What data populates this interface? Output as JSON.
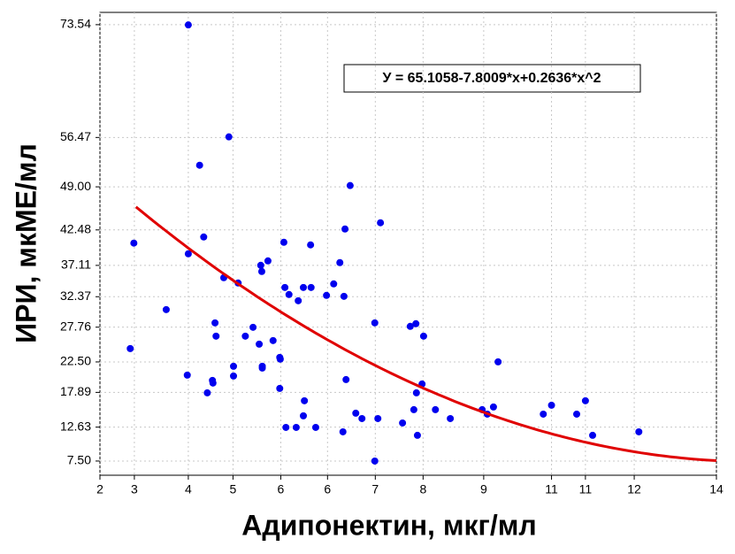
{
  "chart_data": {
    "type": "scatter",
    "xlabel": "Адипонектин, мкг/мл",
    "ylabel": "ИРИ, мкМЕ/мл",
    "annotation": "У = 65.1058-7.8009*x+0.2636*x^2",
    "color": "#0000ee",
    "grid": true,
    "xlim": [
      2,
      14
    ],
    "ylim": [
      5.35,
      75.4
    ],
    "xticks": [
      {
        "value": 2,
        "label": "2"
      },
      {
        "value": 2.67,
        "label": "3"
      },
      {
        "value": 3.72,
        "label": "4"
      },
      {
        "value": 4.59,
        "label": "5"
      },
      {
        "value": 5.52,
        "label": "6"
      },
      {
        "value": 6.43,
        "label": "6"
      },
      {
        "value": 7.36,
        "label": "7"
      },
      {
        "value": 8.29,
        "label": "8"
      },
      {
        "value": 9.47,
        "label": "9"
      },
      {
        "value": 10.79,
        "label": "11"
      },
      {
        "value": 11.45,
        "label": "11"
      },
      {
        "value": 12.4,
        "label": "12"
      },
      {
        "value": 14,
        "label": "14"
      }
    ],
    "yticks": [
      {
        "value": 7.5,
        "label": "7.50"
      },
      12.63,
      17.89,
      {
        "value": 22.5,
        "label": "22.50"
      },
      27.76,
      32.37,
      37.11,
      42.48,
      {
        "value": 49,
        "label": "49.00"
      },
      56.47,
      73.54
    ],
    "x": [
      2.59,
      2.66,
      3.29,
      3.72,
      3.72,
      3.7,
      3.94,
      4.02,
      4.09,
      4.19,
      4.2,
      4.24,
      4.26,
      4.41,
      4.51,
      4.6,
      4.6,
      4.69,
      4.83,
      4.98,
      5.1,
      5.13,
      5.15,
      5.16,
      5.16,
      5.27,
      5.37,
      5.5,
      5.51,
      5.5,
      5.58,
      5.6,
      5.62,
      5.68,
      5.82,
      5.86,
      5.96,
      5.98,
      5.96,
      6.1,
      6.11,
      6.2,
      6.41,
      6.55,
      6.67,
      6.73,
      6.75,
      6.77,
      6.79,
      6.87,
      6.98,
      7.1,
      7.35,
      7.41,
      7.46,
      7.89,
      8.04,
      8.15,
      8.11,
      8.16,
      8.18,
      8.27,
      8.3,
      8.53,
      8.82,
      9.44,
      9.54,
      9.66,
      9.75,
      10.63,
      10.79,
      11.28,
      11.45,
      11.59,
      12.49,
      7.35
    ],
    "y": [
      24.52,
      40.48,
      30.42,
      73.5,
      38.87,
      20.5,
      52.27,
      41.41,
      17.82,
      19.7,
      19.3,
      28.41,
      26.4,
      35.25,
      56.56,
      21.84,
      20.37,
      34.44,
      26.4,
      27.74,
      25.19,
      37.12,
      36.19,
      21.84,
      21.57,
      37.79,
      25.73,
      23.18,
      22.92,
      18.49,
      40.61,
      33.77,
      12.59,
      32.7,
      12.59,
      31.76,
      33.77,
      16.62,
      14.34,
      40.21,
      33.77,
      12.59,
      32.57,
      34.31,
      37.53,
      11.92,
      32.43,
      42.62,
      19.83,
      49.19,
      14.74,
      13.93,
      28.41,
      13.93,
      43.56,
      13.26,
      27.88,
      28.28,
      15.27,
      17.82,
      11.39,
      19.16,
      26.4,
      15.27,
      13.93,
      15.27,
      14.6,
      15.68,
      22.51,
      14.6,
      15.94,
      14.6,
      16.62,
      11.39,
      11.92,
      7.5
    ],
    "fit": {
      "coefficients": [
        65.1058,
        -7.8009,
        0.2636
      ],
      "x_range": [
        2.7,
        14
      ],
      "color": "#e00000"
    }
  }
}
